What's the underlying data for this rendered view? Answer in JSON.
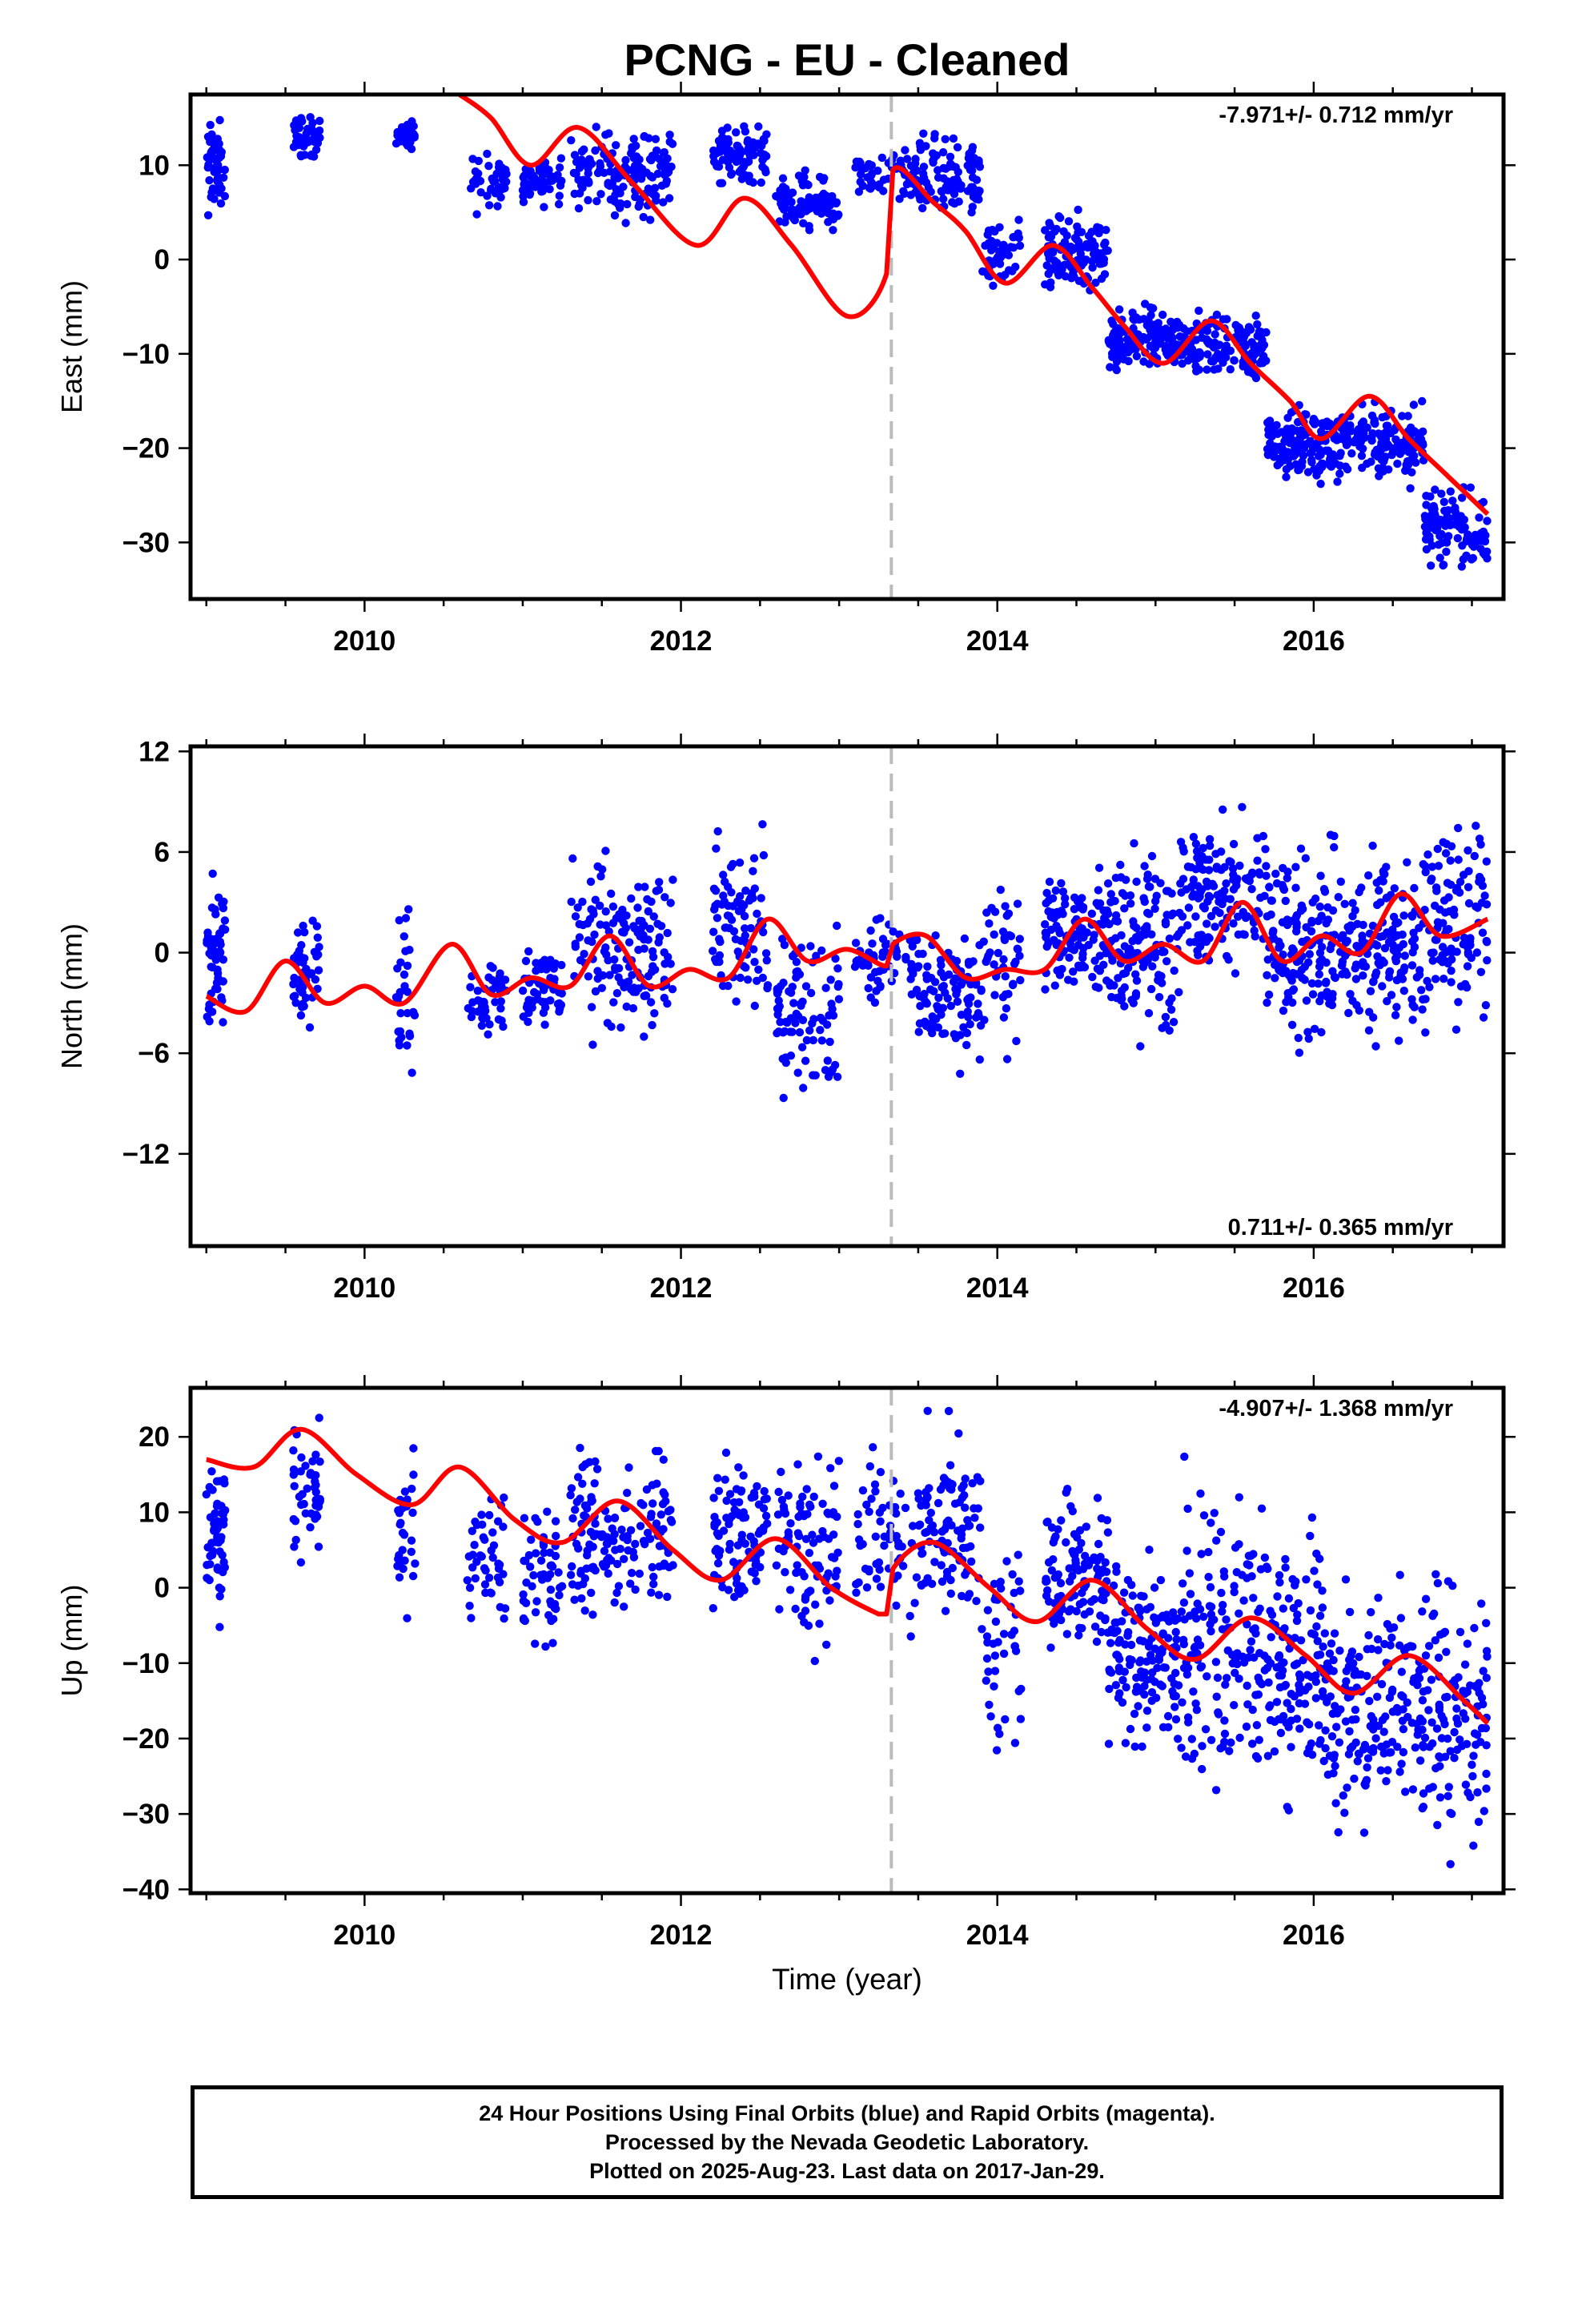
{
  "title": "PCNG  - EU - Cleaned",
  "colors": {
    "data_points": "#0000ff",
    "model_line": "#ff0000",
    "event_line": "#bbbbbb",
    "axis": "#000000"
  },
  "chart_data": [
    {
      "type": "scatter",
      "component": "East",
      "ylabel": "East (mm)",
      "xlabel": "",
      "rate_label": "-7.971+/- 0.712 mm/yr",
      "rate_position": "top-right",
      "xlim": [
        2008.9,
        2017.2
      ],
      "ylim": [
        -36,
        17.5
      ],
      "xticks": [
        2010,
        2012,
        2014,
        2016
      ],
      "yticks": [
        10,
        0,
        -10,
        -20,
        -30
      ],
      "event_line_x": 2013.33,
      "model": {
        "x": [
          2010.6,
          2010.8,
          2011.05,
          2011.35,
          2011.7,
          2012.1,
          2012.4,
          2012.7,
          2013.05,
          2013.3,
          2013.34,
          2013.6,
          2013.8,
          2014.05,
          2014.35,
          2014.6,
          2014.8,
          2015.05,
          2015.35,
          2015.6,
          2015.85,
          2016.05,
          2016.35,
          2016.6,
          2016.85,
          2017.1
        ],
        "y": [
          17.5,
          15,
          10,
          14,
          8,
          1.5,
          6.5,
          1.5,
          -6,
          -1.5,
          9.5,
          6,
          3,
          -2.5,
          1.5,
          -3,
          -7,
          -11,
          -6.5,
          -11,
          -15,
          -19,
          -14.5,
          -19,
          -23,
          -27
        ]
      },
      "clusters": [
        {
          "x0": 2009.0,
          "x1": 2009.12,
          "ymin": 3,
          "ymax": 16.5,
          "n": 55
        },
        {
          "x0": 2009.55,
          "x1": 2009.72,
          "ymin": 10,
          "ymax": 16,
          "n": 45
        },
        {
          "x0": 2010.2,
          "x1": 2010.32,
          "ymin": 11,
          "ymax": 15.5,
          "n": 30
        },
        {
          "x0": 2010.65,
          "x1": 2010.9,
          "ymin": 4,
          "ymax": 12,
          "n": 45
        },
        {
          "x0": 2011.0,
          "x1": 2011.25,
          "ymin": 5,
          "ymax": 12,
          "n": 55
        },
        {
          "x0": 2011.3,
          "x1": 2011.95,
          "ymin": 3,
          "ymax": 15.5,
          "n": 150
        },
        {
          "x0": 2012.2,
          "x1": 2012.55,
          "ymin": 7,
          "ymax": 15,
          "n": 90
        },
        {
          "x0": 2012.6,
          "x1": 2013.0,
          "ymin": 2,
          "ymax": 10,
          "n": 90
        },
        {
          "x0": 2013.1,
          "x1": 2013.5,
          "ymin": 5,
          "ymax": 12.5,
          "n": 60
        },
        {
          "x0": 2013.5,
          "x1": 2013.9,
          "ymin": 2,
          "ymax": 15,
          "n": 100
        },
        {
          "x0": 2013.9,
          "x1": 2014.15,
          "ymin": -5,
          "ymax": 6,
          "n": 45
        },
        {
          "x0": 2014.3,
          "x1": 2014.7,
          "ymin": -5,
          "ymax": 6,
          "n": 110
        },
        {
          "x0": 2014.7,
          "x1": 2015.15,
          "ymin": -13,
          "ymax": -4,
          "n": 140
        },
        {
          "x0": 2015.15,
          "x1": 2015.7,
          "ymin": -14,
          "ymax": -4,
          "n": 150
        },
        {
          "x0": 2015.7,
          "x1": 2016.1,
          "ymin": -25,
          "ymax": -14,
          "n": 130
        },
        {
          "x0": 2016.1,
          "x1": 2016.7,
          "ymin": -25,
          "ymax": -14,
          "n": 170
        },
        {
          "x0": 2016.7,
          "x1": 2017.1,
          "ymin": -34,
          "ymax": -23,
          "n": 110
        }
      ]
    },
    {
      "type": "scatter",
      "component": "North",
      "ylabel": "North (mm)",
      "xlabel": "",
      "rate_label": "0.711+/- 0.365 mm/yr",
      "rate_position": "bottom-right",
      "xlim": [
        2008.9,
        2017.2
      ],
      "ylim": [
        -17.5,
        12.3
      ],
      "xticks": [
        2010,
        2012,
        2014,
        2016
      ],
      "yticks": [
        12,
        6,
        0,
        -6,
        -12
      ],
      "event_line_x": 2013.33,
      "model": {
        "x": [
          2009.0,
          2009.25,
          2009.5,
          2009.75,
          2010.0,
          2010.25,
          2010.55,
          2010.8,
          2011.05,
          2011.3,
          2011.55,
          2011.8,
          2012.05,
          2012.3,
          2012.55,
          2012.8,
          2013.05,
          2013.3,
          2013.34,
          2013.55,
          2013.8,
          2014.05,
          2014.3,
          2014.55,
          2014.8,
          2015.05,
          2015.3,
          2015.55,
          2015.8,
          2016.05,
          2016.3,
          2016.55,
          2016.8,
          2017.1
        ],
        "y": [
          -2.6,
          -3.5,
          -0.5,
          -3.0,
          -2.0,
          -3.0,
          0.5,
          -2.5,
          -1.5,
          -2.0,
          1.0,
          -2.0,
          -1.0,
          -1.5,
          2.0,
          -0.5,
          0.2,
          -0.8,
          0.5,
          1.0,
          -1.5,
          -1.0,
          -1.0,
          2.0,
          -0.5,
          0.5,
          -0.5,
          3.0,
          -0.5,
          1.0,
          0.0,
          3.5,
          1.0,
          2.0
        ]
      },
      "clusters": [
        {
          "x0": 2009.0,
          "x1": 2009.12,
          "ymin": -7,
          "ymax": 6.5,
          "n": 55
        },
        {
          "x0": 2009.55,
          "x1": 2009.72,
          "ymin": -5,
          "ymax": 3.5,
          "n": 45
        },
        {
          "x0": 2010.2,
          "x1": 2010.32,
          "ymin": -9,
          "ymax": 4.5,
          "n": 30
        },
        {
          "x0": 2010.65,
          "x1": 2010.9,
          "ymin": -6,
          "ymax": 1,
          "n": 45
        },
        {
          "x0": 2011.0,
          "x1": 2011.25,
          "ymin": -5,
          "ymax": 1,
          "n": 55
        },
        {
          "x0": 2011.3,
          "x1": 2011.95,
          "ymin": -7,
          "ymax": 7,
          "n": 150
        },
        {
          "x0": 2012.2,
          "x1": 2012.55,
          "ymin": -6,
          "ymax": 9,
          "n": 90
        },
        {
          "x0": 2012.6,
          "x1": 2013.0,
          "ymin": -10,
          "ymax": 3,
          "n": 90
        },
        {
          "x0": 2013.1,
          "x1": 2013.5,
          "ymin": -4,
          "ymax": 3,
          "n": 60
        },
        {
          "x0": 2013.5,
          "x1": 2013.9,
          "ymin": -8,
          "ymax": 3,
          "n": 100
        },
        {
          "x0": 2013.9,
          "x1": 2014.15,
          "ymin": -8,
          "ymax": 7,
          "n": 45
        },
        {
          "x0": 2014.3,
          "x1": 2014.7,
          "ymin": -4,
          "ymax": 6,
          "n": 110
        },
        {
          "x0": 2014.7,
          "x1": 2015.15,
          "ymin": -7,
          "ymax": 8,
          "n": 140
        },
        {
          "x0": 2015.15,
          "x1": 2015.7,
          "ymin": -3,
          "ymax": 9.5,
          "n": 150
        },
        {
          "x0": 2015.7,
          "x1": 2016.1,
          "ymin": -7,
          "ymax": 8,
          "n": 130
        },
        {
          "x0": 2016.1,
          "x1": 2016.7,
          "ymin": -7,
          "ymax": 8,
          "n": 170
        },
        {
          "x0": 2016.7,
          "x1": 2017.1,
          "ymin": -6,
          "ymax": 9.5,
          "n": 110
        }
      ]
    },
    {
      "type": "scatter",
      "component": "Up",
      "ylabel": "Up (mm)",
      "xlabel": "Time (year)",
      "rate_label": "-4.907+/- 1.368 mm/yr",
      "rate_position": "top-right",
      "xlim": [
        2008.9,
        2017.2
      ],
      "ylim": [
        -40.5,
        26.5
      ],
      "xticks": [
        2010,
        2012,
        2014,
        2016
      ],
      "yticks": [
        20,
        10,
        0,
        -10,
        -20,
        -30,
        -40
      ],
      "event_line_x": 2013.33,
      "model": {
        "x": [
          2009.0,
          2009.3,
          2009.6,
          2009.95,
          2010.3,
          2010.6,
          2010.95,
          2011.25,
          2011.6,
          2011.95,
          2012.25,
          2012.6,
          2012.95,
          2013.25,
          2013.3,
          2013.34,
          2013.6,
          2013.95,
          2014.25,
          2014.6,
          2014.95,
          2015.25,
          2015.6,
          2015.95,
          2016.25,
          2016.6,
          2016.95,
          2017.1
        ],
        "y": [
          17,
          16,
          21,
          15,
          11,
          16,
          9,
          6,
          11.5,
          5,
          1,
          6.5,
          0,
          -3.5,
          -3.5,
          2.5,
          6,
          0,
          -4.5,
          1,
          -5.5,
          -9.5,
          -4,
          -9,
          -14,
          -9,
          -15,
          -18
        ]
      },
      "clusters": [
        {
          "x0": 2009.0,
          "x1": 2009.12,
          "ymin": -6,
          "ymax": 20,
          "n": 55
        },
        {
          "x0": 2009.55,
          "x1": 2009.72,
          "ymin": 0,
          "ymax": 25,
          "n": 45
        },
        {
          "x0": 2010.2,
          "x1": 2010.32,
          "ymin": -5,
          "ymax": 20,
          "n": 30
        },
        {
          "x0": 2010.65,
          "x1": 2010.9,
          "ymin": -10,
          "ymax": 18,
          "n": 45
        },
        {
          "x0": 2011.0,
          "x1": 2011.25,
          "ymin": -12,
          "ymax": 14,
          "n": 55
        },
        {
          "x0": 2011.3,
          "x1": 2011.95,
          "ymin": -8,
          "ymax": 21,
          "n": 150
        },
        {
          "x0": 2012.2,
          "x1": 2012.55,
          "ymin": -7,
          "ymax": 22,
          "n": 90
        },
        {
          "x0": 2012.6,
          "x1": 2013.0,
          "ymin": -13,
          "ymax": 25,
          "n": 90
        },
        {
          "x0": 2013.1,
          "x1": 2013.5,
          "ymin": -13,
          "ymax": 25,
          "n": 60
        },
        {
          "x0": 2013.5,
          "x1": 2013.9,
          "ymin": -8,
          "ymax": 24,
          "n": 100
        },
        {
          "x0": 2013.9,
          "x1": 2014.15,
          "ymin": -27,
          "ymax": 12,
          "n": 45
        },
        {
          "x0": 2014.3,
          "x1": 2014.7,
          "ymin": -12,
          "ymax": 17,
          "n": 110
        },
        {
          "x0": 2014.7,
          "x1": 2015.15,
          "ymin": -25,
          "ymax": 8,
          "n": 140
        },
        {
          "x0": 2015.15,
          "x1": 2015.7,
          "ymin": -32,
          "ymax": 20,
          "n": 150
        },
        {
          "x0": 2015.7,
          "x1": 2016.1,
          "ymin": -34,
          "ymax": 15,
          "n": 130
        },
        {
          "x0": 2016.1,
          "x1": 2016.7,
          "ymin": -38,
          "ymax": 4,
          "n": 170
        },
        {
          "x0": 2016.7,
          "x1": 2017.1,
          "ymin": -39,
          "ymax": 6,
          "n": 110
        }
      ]
    }
  ],
  "footer": {
    "line1": "24 Hour Positions Using Final Orbits (blue) and Rapid Orbits (magenta).",
    "line2": "Processed by the Nevada Geodetic Laboratory.",
    "line3": "Plotted on 2025-Aug-23. Last data on 2017-Jan-29."
  }
}
